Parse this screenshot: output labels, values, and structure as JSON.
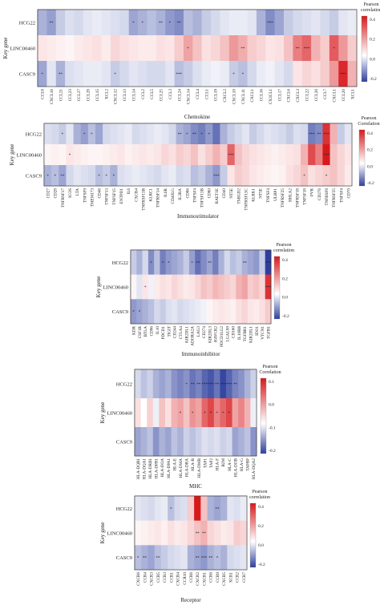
{
  "colors": {
    "neg": "#2e3f9e",
    "mid": "#ffffff",
    "pos": "#d7191c"
  },
  "chart_data": [
    {
      "type": "heatmap",
      "xlabel": "Chemokine",
      "ylabel": "Key gene",
      "legend_title": "Pearson correlation",
      "legend_ticks": [
        "0.4",
        "0.2",
        "0.0",
        "-0.2"
      ],
      "clim": [
        -0.3,
        0.45
      ],
      "rows": [
        "HCG22",
        "LINC00460",
        "CASC9"
      ],
      "cols": [
        "CCL8",
        "CXCL16",
        "CCL21",
        "CCL23",
        "CCL27",
        "CCL28",
        "CCL15",
        "XCL2",
        "CXCL12",
        "CCL13",
        "CCL14",
        "CCL2",
        "CCL5",
        "CCL25",
        "CCL3",
        "CCL24",
        "CXCL14",
        "CCL4",
        "CCL1",
        "CCL19",
        "CXCL2",
        "CXCL10",
        "CXCL11",
        "CXCL1",
        "CCL16",
        "CX3CL1",
        "CCL17",
        "CXCL6",
        "CXCL3",
        "CCL22",
        "CCL26",
        "CCL7",
        "CXCL1",
        "CCL20",
        "XCL1"
      ],
      "values": [
        [
          -0.12,
          -0.15,
          -0.08,
          -0.05,
          -0.06,
          -0.04,
          -0.03,
          -0.04,
          -0.05,
          -0.06,
          -0.14,
          -0.12,
          -0.1,
          -0.12,
          -0.16,
          -0.18,
          -0.1,
          -0.12,
          -0.08,
          -0.06,
          -0.04,
          -0.03,
          -0.03,
          -0.04,
          -0.12,
          -0.18,
          -0.14,
          -0.08,
          -0.06,
          -0.05,
          -0.04,
          -0.06,
          -0.08,
          -0.04,
          -0.03
        ],
        [
          0.05,
          0.04,
          0.03,
          0.02,
          0.04,
          0.05,
          0.06,
          0.04,
          0.08,
          0.06,
          0.05,
          0.04,
          0.04,
          0.06,
          0.05,
          0.1,
          0.18,
          0.12,
          0.06,
          0.08,
          0.12,
          0.2,
          0.16,
          0.1,
          0.08,
          0.05,
          0.06,
          0.12,
          0.25,
          0.3,
          0.15,
          0.1,
          0.32,
          0.2,
          0.1
        ],
        [
          -0.14,
          -0.04,
          -0.12,
          -0.05,
          -0.04,
          -0.03,
          -0.03,
          -0.04,
          -0.08,
          -0.06,
          -0.04,
          -0.05,
          -0.06,
          -0.06,
          -0.04,
          -0.1,
          -0.08,
          -0.05,
          -0.03,
          -0.02,
          -0.03,
          -0.08,
          -0.1,
          -0.06,
          -0.03,
          -0.02,
          -0.04,
          -0.06,
          0.05,
          0.08,
          0.06,
          0.1,
          0.2,
          0.42,
          0.15
        ]
      ],
      "stars": [
        [
          "",
          "**",
          "",
          "",
          "",
          "",
          "",
          "",
          "",
          "",
          "*",
          "*",
          "",
          "**",
          "*",
          "**",
          "",
          "",
          "",
          "",
          "",
          "",
          "",
          "",
          "",
          "***",
          "",
          "",
          "",
          "",
          "",
          "",
          "",
          "",
          ""
        ],
        [
          "",
          "",
          "",
          "",
          "",
          "",
          "",
          "",
          "",
          "",
          "",
          "",
          "",
          "",
          "",
          "",
          "*",
          "",
          "",
          "",
          "",
          "",
          "**",
          "",
          "",
          "",
          "",
          "",
          "**",
          "***",
          "",
          "",
          "*",
          "",
          ""
        ],
        [
          "*",
          "",
          "**",
          "",
          "",
          "",
          "",
          "",
          "*",
          "",
          "",
          "",
          "",
          "",
          "",
          "***",
          "",
          "",
          "",
          "",
          "",
          "*",
          "*",
          "",
          "",
          "",
          "",
          "",
          "",
          "",
          "",
          "",
          "",
          "***",
          ""
        ]
      ]
    },
    {
      "type": "heatmap",
      "xlabel": "Immunostimulator",
      "ylabel": "Key gene",
      "legend_title": "Pearson Correlation",
      "legend_ticks": [
        "0.4",
        "0.2",
        "0.0",
        "-0.2"
      ],
      "clim": [
        -0.3,
        0.45
      ],
      "rows": [
        "HCG22",
        "LINC00460",
        "CASC9"
      ],
      "cols": [
        "CD27",
        "CD28",
        "TNFRSF17",
        "ICOS",
        "LTA",
        "TNFSF9",
        "TMEM173",
        "CD48",
        "TNFSF13",
        "TNFSF15",
        "ENTPD1",
        "IL6",
        "CXCR4",
        "TNFRSF13B",
        "KLRC1",
        "TNFRSF14",
        "IL6R",
        "CD40LG",
        "IL2RA",
        "CD86",
        "TNFSF4",
        "TNFSF13B",
        "CD80",
        "RAET1E",
        "CD40",
        "NT5E",
        "TMIGD2",
        "TNFRSF13C",
        "KLRK1",
        "NT5E",
        "TNFSF4",
        "ULBP1",
        "TNFRSF25",
        "HHLA2",
        "TNFRSF18",
        "TNFSF18",
        "PVR",
        "CD276",
        "TNFRSF8",
        "TNFRSF25",
        "TNFSF4",
        "CD70"
      ],
      "values": [
        [
          -0.05,
          -0.06,
          -0.08,
          -0.04,
          -0.12,
          -0.15,
          -0.1,
          -0.14,
          -0.06,
          -0.05,
          -0.04,
          -0.03,
          -0.06,
          -0.05,
          -0.04,
          -0.03,
          -0.04,
          -0.06,
          -0.12,
          -0.14,
          -0.18,
          -0.2,
          -0.16,
          -0.22,
          -0.12,
          -0.08,
          -0.06,
          -0.04,
          -0.08,
          -0.06,
          -0.04,
          -0.05,
          -0.06,
          -0.08,
          -0.05,
          -0.06,
          -0.2,
          -0.18,
          0.4,
          0.15,
          -0.08,
          -0.04
        ],
        [
          0.02,
          0.03,
          0.02,
          0.05,
          0.04,
          0.03,
          0.02,
          0.02,
          0.03,
          0.04,
          0.05,
          0.03,
          0.04,
          0.05,
          0.04,
          0.05,
          0.08,
          0.06,
          0.1,
          0.08,
          0.12,
          0.06,
          0.1,
          0.15,
          0.1,
          0.3,
          0.12,
          0.08,
          0.06,
          0.05,
          0.04,
          0.03,
          0.04,
          0.05,
          0.06,
          0.15,
          0.35,
          0.25,
          0.45,
          0.12,
          0.08,
          0.05
        ],
        [
          -0.12,
          -0.1,
          -0.14,
          -0.06,
          -0.04,
          -0.05,
          -0.06,
          -0.1,
          -0.08,
          -0.12,
          -0.05,
          -0.04,
          -0.03,
          -0.04,
          -0.05,
          -0.06,
          -0.04,
          -0.03,
          -0.06,
          -0.05,
          -0.1,
          -0.08,
          -0.12,
          -0.16,
          -0.08,
          0.05,
          0.1,
          0.08,
          0.05,
          0.04,
          0.03,
          0.02,
          0.03,
          0.06,
          0.08,
          0.12,
          0.06,
          0.08,
          0.1,
          0.12,
          0.08,
          0.04
        ]
      ],
      "stars": [
        [
          "",
          "",
          "*",
          "",
          "",
          "*",
          "*",
          "",
          "",
          "",
          "",
          "",
          "",
          "",
          "",
          "",
          "",
          "",
          "**",
          "*",
          "**",
          "*",
          "*",
          "",
          "",
          "",
          "",
          "",
          "",
          "",
          "",
          "",
          "",
          "",
          "",
          "",
          "***",
          "**",
          "***",
          "",
          "",
          ""
        ],
        [
          "",
          "",
          "",
          "*",
          "",
          "",
          "",
          "",
          "",
          "",
          "",
          "",
          "",
          "",
          "",
          "",
          "",
          "",
          "",
          "",
          "",
          "",
          "",
          "",
          "",
          "***",
          "",
          "",
          "",
          "",
          "",
          "",
          "",
          "",
          "",
          "",
          "",
          "",
          "***",
          "",
          "",
          ""
        ],
        [
          "*",
          "*",
          "**",
          "",
          "",
          "",
          "",
          "*",
          "*",
          "*",
          "",
          "",
          "",
          "",
          "",
          "",
          "",
          "",
          "",
          "",
          "",
          "",
          "",
          "***",
          "",
          "",
          "",
          "",
          "",
          "",
          "",
          "",
          "",
          "",
          "",
          "*",
          "",
          "",
          "*",
          "",
          "",
          ""
        ]
      ]
    },
    {
      "type": "heatmap",
      "xlabel": "Immunoinhibitor",
      "ylabel": "Key gene",
      "legend_title": "Pearson correlation",
      "legend_ticks": [
        "0.4",
        "0.2",
        "0.0",
        "-0.2"
      ],
      "clim": [
        -0.3,
        0.45
      ],
      "rows": [
        "HCG22",
        "LINC00460",
        "CASC9"
      ],
      "cols": [
        "KDR",
        "CSF1R",
        "BTLA",
        "CD96",
        "IL10",
        "PDCD1",
        "TIGIT",
        "CD244",
        "CTLA4",
        "KIR2DL1",
        "ADORA2A",
        "LAG3",
        "CD274",
        "KIR2DL3",
        "HAVCR2",
        "PDCD1LG2",
        "LGALS9",
        "CD160",
        "IL10RB",
        "TGFBR1",
        "KIR2DL1",
        "IDO1",
        "VTCN1",
        "TGFB1"
      ],
      "values": [
        [
          -0.08,
          -0.12,
          -0.06,
          -0.18,
          -0.1,
          -0.2,
          -0.16,
          -0.14,
          -0.12,
          -0.08,
          -0.15,
          -0.22,
          -0.18,
          -0.14,
          -0.2,
          -0.12,
          -0.06,
          -0.1,
          -0.08,
          -0.12,
          -0.14,
          -0.16,
          -0.08,
          -0.3
        ],
        [
          0.02,
          -0.04,
          0.05,
          -0.02,
          0.04,
          0.06,
          0.05,
          0.08,
          0.06,
          0.04,
          0.05,
          0.08,
          0.12,
          0.1,
          0.14,
          0.12,
          0.1,
          0.08,
          0.15,
          0.18,
          0.1,
          0.12,
          0.08,
          0.4
        ],
        [
          -0.16,
          -0.14,
          -0.12,
          -0.1,
          -0.06,
          -0.08,
          -0.05,
          -0.04,
          -0.06,
          -0.05,
          -0.04,
          -0.03,
          -0.02,
          0.02,
          0.04,
          0.05,
          0.04,
          0.03,
          0.06,
          0.08,
          0.05,
          0.04,
          0.06,
          0.1
        ]
      ],
      "stars": [
        [
          "",
          "",
          "",
          "*",
          "",
          "*",
          "*",
          "",
          "",
          "",
          "*",
          "**",
          "",
          "**",
          "",
          "",
          "",
          "",
          "",
          "**",
          "",
          "",
          "",
          "***"
        ],
        [
          "",
          "",
          "*",
          "",
          "",
          "",
          "",
          "",
          "",
          "",
          "",
          "",
          "",
          "",
          "",
          "",
          "",
          "",
          "",
          "",
          "",
          "",
          "",
          "***"
        ],
        [
          "*",
          "*",
          "",
          "",
          "",
          "",
          "",
          "",
          "",
          "",
          "",
          "",
          "",
          "",
          "",
          "",
          "",
          "",
          "",
          "",
          "",
          "",
          "",
          ""
        ]
      ]
    },
    {
      "type": "heatmap",
      "xlabel": "MHC",
      "ylabel": "Key gene",
      "legend_title": "Pearson Correlation",
      "legend_ticks": [
        "0.1",
        "0.0",
        "-0.1",
        "-0.2"
      ],
      "clim": [
        -0.25,
        0.15
      ],
      "rows": [
        "HCG22",
        "LINC00460",
        "CASC9"
      ],
      "cols": [
        "HLA-DQB1",
        "HLA-DQA1",
        "HLA-DRB1",
        "HLA-DPB1",
        "HLA-DOA",
        "HLA-DPA1",
        "HLA-E",
        "HLA-DMA",
        "HLA-DRA",
        "HLA-B",
        "HLA-DMB",
        "TAP1",
        "TAP2",
        "HLA-F",
        "B2M",
        "HLA-C",
        "HLA-DOB",
        "HLA-G",
        "TAPBP",
        "HLA-DQA2"
      ],
      "values": [
        [
          -0.05,
          -0.08,
          -0.06,
          -0.1,
          -0.12,
          -0.1,
          -0.14,
          -0.16,
          -0.14,
          -0.18,
          -0.16,
          -0.2,
          -0.22,
          -0.18,
          -0.24,
          -0.2,
          -0.16,
          -0.14,
          -0.1,
          -0.06
        ],
        [
          0.02,
          0.0,
          0.03,
          -0.02,
          0.04,
          0.02,
          0.05,
          0.06,
          0.04,
          0.07,
          0.06,
          0.1,
          0.12,
          0.08,
          0.1,
          0.12,
          0.06,
          0.08,
          0.05,
          -0.02
        ],
        [
          -0.12,
          -0.1,
          -0.08,
          -0.14,
          -0.1,
          -0.12,
          -0.08,
          -0.1,
          -0.06,
          -0.08,
          -0.06,
          -0.04,
          -0.05,
          -0.04,
          -0.06,
          -0.05,
          -0.12,
          -0.1,
          -0.08,
          -0.14
        ]
      ],
      "stars": [
        [
          "",
          "",
          "",
          "",
          "",
          "",
          "",
          "",
          "*",
          "**",
          "**",
          "***",
          "***",
          "**",
          "***",
          "***",
          "**",
          "",
          "",
          ""
        ],
        [
          "",
          "",
          "",
          "",
          "",
          "",
          "",
          "*",
          "",
          "*",
          "",
          "*",
          "*",
          "*",
          "*",
          "*",
          "",
          "",
          "",
          ""
        ],
        [
          "",
          "",
          "",
          "",
          "",
          "",
          "",
          "",
          "",
          "",
          "",
          "",
          "",
          "",
          "",
          "",
          "",
          "",
          "",
          ""
        ]
      ]
    },
    {
      "type": "heatmap",
      "xlabel": "Receptor",
      "ylabel": "Key gene",
      "legend_title": "Pearson correlation",
      "legend_ticks": [
        "0.4",
        "0.2",
        "0.0",
        "-0.2"
      ],
      "clim": [
        -0.3,
        0.45
      ],
      "rows": [
        "HCG22",
        "LINC00460",
        "CASC9"
      ],
      "cols": [
        "CXCR6",
        "CCR4",
        "CXCR3",
        "CCR5",
        "CCR3",
        "CCR1",
        "CXCR4",
        "CCR10",
        "CCR8",
        "CXCR2",
        "CXCR1",
        "CCR6",
        "CCR9",
        "CXCR5",
        "XCR1",
        "CCR2",
        "CCR7"
      ],
      "values": [
        [
          -0.04,
          -0.05,
          -0.06,
          -0.04,
          -0.03,
          -0.1,
          -0.06,
          -0.05,
          0.1,
          0.45,
          0.12,
          -0.12,
          -0.14,
          -0.12,
          -0.04,
          -0.05,
          -0.03
        ],
        [
          0.02,
          0.03,
          0.04,
          0.05,
          0.03,
          0.06,
          0.04,
          0.05,
          0.08,
          0.12,
          0.15,
          0.08,
          0.06,
          0.04,
          0.05,
          0.1,
          0.08
        ],
        [
          -0.1,
          -0.12,
          -0.14,
          -0.1,
          -0.08,
          -0.06,
          -0.05,
          -0.04,
          -0.12,
          -0.14,
          -0.16,
          -0.12,
          -0.1,
          -0.12,
          -0.06,
          -0.05,
          -0.04
        ]
      ],
      "stars": [
        [
          "",
          "",
          "",
          "",
          "",
          "*",
          "",
          "",
          "",
          "",
          "",
          "",
          "**",
          "",
          "",
          "",
          ""
        ],
        [
          "",
          "",
          "",
          "",
          "",
          "",
          "",
          "",
          "",
          "**",
          "**",
          "",
          "",
          "",
          "",
          "",
          ""
        ],
        [
          "*",
          "**",
          "",
          "**",
          "",
          "",
          "",
          "",
          "",
          "**",
          "***",
          "**",
          "*",
          "",
          "",
          "",
          ""
        ]
      ]
    }
  ]
}
